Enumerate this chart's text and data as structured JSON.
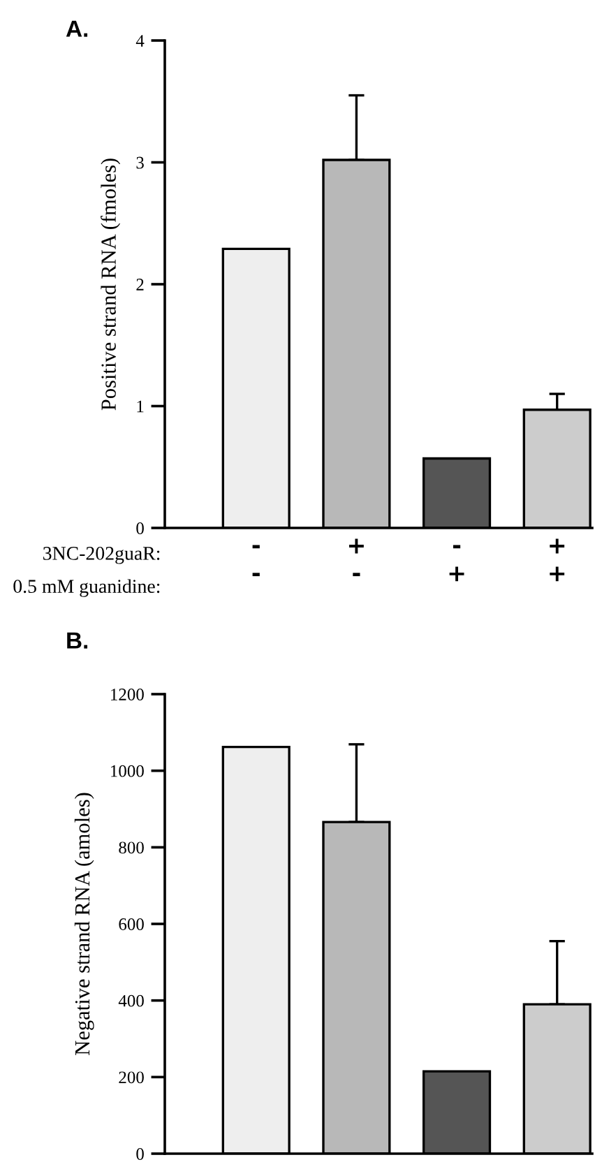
{
  "chart_data": [
    {
      "type": "bar",
      "title": "A.",
      "ylabel": "Positive strand RNA (fmoles)",
      "categories": [
        "-\n-",
        "+\n-",
        "-\n+",
        "+\n+"
      ],
      "annotations": [
        "3NC-202guaR:",
        "0.5 mM guanidine:"
      ],
      "values": [
        2.29,
        3.02,
        0.57,
        0.97
      ],
      "colors": [
        "#eeeeee",
        "#b8b8b8",
        "#555555",
        "#cccccc"
      ],
      "errors": [
        null,
        [
          3.02,
          3.55
        ],
        null,
        [
          0.97,
          1.1
        ]
      ],
      "ylim": [
        0,
        4
      ],
      "yticks": [
        0,
        1,
        2,
        3,
        4
      ],
      "grid": false,
      "legend": false
    },
    {
      "type": "bar",
      "title": "B.",
      "ylabel": "Negative strand RNA (amoles)",
      "categories": [
        null,
        null,
        null,
        null
      ],
      "values": [
        1062,
        866,
        215,
        390
      ],
      "colors": [
        "#eeeeee",
        "#b8b8b8",
        "#555555",
        "#cccccc"
      ],
      "errors": [
        null,
        [
          866,
          1069
        ],
        null,
        [
          390,
          555
        ]
      ],
      "ylim": [
        0,
        1200
      ],
      "yticks": [
        0,
        200,
        400,
        600,
        800,
        1000,
        1200
      ],
      "grid": false,
      "legend": false,
      "tick_labels": "y"
    }
  ]
}
